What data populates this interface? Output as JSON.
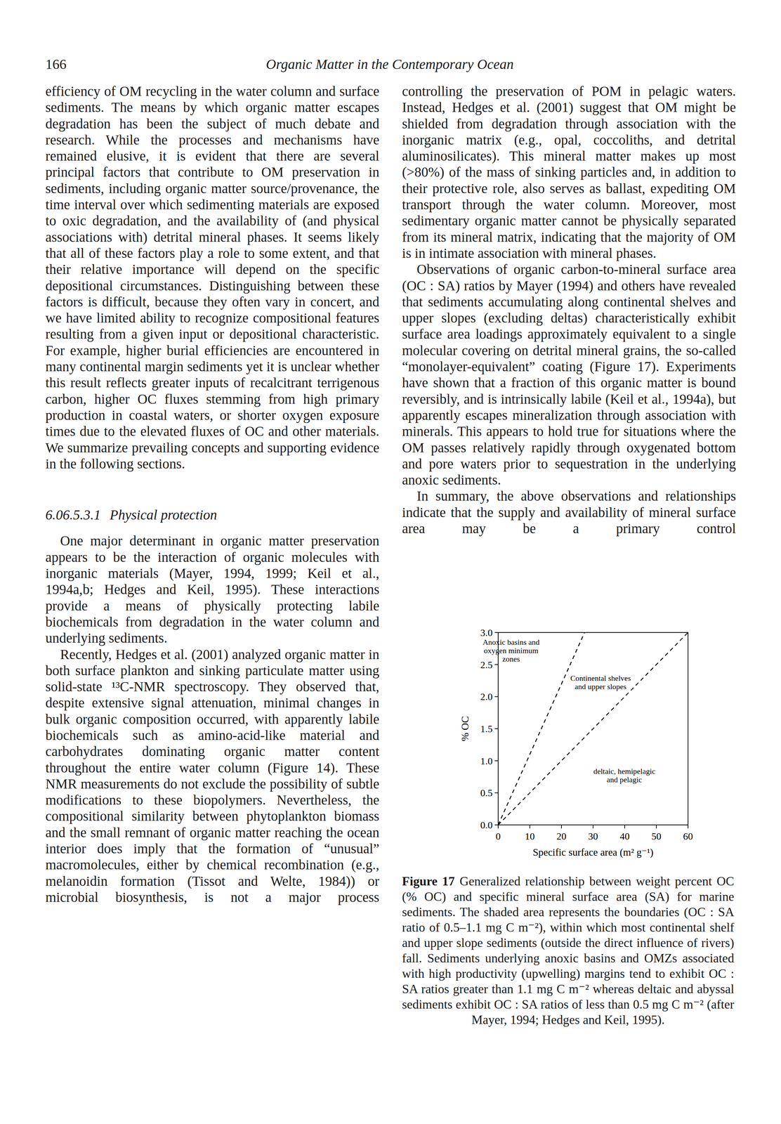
{
  "header": {
    "page_number": "166",
    "title": "Organic Matter in the Contemporary Ocean"
  },
  "left_column": [
    {
      "type": "paragraph",
      "text": "efficiency of OM recycling in the water column and surface sediments. The means by which organic matter escapes degradation has been the subject of much debate and research. While the processes and mechanisms have remained elusive, it is evident that there are several principal factors that contribute to OM preservation in sediments, including organic matter source/provenance, the time interval over which sedimenting materials are exposed to oxic degradation, and the availability of (and physical associations with) detrital mineral phases. It seems likely that all of these factors play a role to some extent, and that their relative importance will depend on the specific depositional circumstances. Distinguishing between these factors is difficult, because they often vary in concert, and we have limited ability to recognize compositional features resulting from a given input or depositional characteristic. For example, higher burial efficiencies are encountered in many continental margin sediments yet it is unclear whether this result reflects greater inputs of recalcitrant terrigenous carbon, higher OC fluxes stemming from high primary production in coastal waters, or shorter oxygen exposure times due to the elevated fluxes of OC and other materials. We summarize prevailing concepts and supporting evidence in the following sections."
    },
    {
      "type": "heading",
      "number": "6.06.5.3.1",
      "title": "Physical protection"
    },
    {
      "type": "paragraph",
      "text": "One major determinant in organic matter preservation appears to be the interaction of organic molecules with inorganic materials (Mayer, 1994, 1999; Keil et al., 1994a,b; Hedges and Keil, 1995). These interactions provide a means of physically protecting labile biochemicals from degradation in the water column and underlying sediments."
    },
    {
      "type": "paragraph",
      "text": "Recently, Hedges et al. (2001) analyzed organic matter in both surface plankton and sinking particulate matter using solid-state ¹³C-NMR spectroscopy. They observed that, despite extensive signal attenuation, minimal changes in bulk organic composition occurred, with apparently labile biochemicals such as amino-acid-like material and carbohydrates dominating organic matter content throughout the entire water column (Figure 14). These NMR measurements do not exclude the possibility of subtle modifications to these biopolymers. Nevertheless, the compositional similarity between phytoplankton biomass and the small remnant of organic matter reaching the ocean interior does imply that the formation of “unusual” macromolecules, either by chemical recombination (e.g., melanoidin formation (Tissot and Welte, 1984)) or microbial biosynthesis, is not a major process"
    }
  ],
  "right_column": [
    {
      "type": "paragraph",
      "text": "controlling the preservation of POM in pelagic waters. Instead, Hedges et al. (2001) suggest that OM might be shielded from degradation through association with the inorganic matrix (e.g., opal, coccoliths, and detrital aluminosilicates). This mineral matter makes up most (>80%) of the mass of sinking particles and, in addition to their protective role, also serves as ballast, expediting OM transport through the water column. Moreover, most sedimentary organic matter cannot be physically separated from its mineral matrix, indicating that the majority of OM is in intimate association with mineral phases."
    },
    {
      "type": "paragraph",
      "text": "Observations of organic carbon-to-mineral surface area (OC : SA) ratios by Mayer (1994) and others have revealed that sediments accumulating along continental shelves and upper slopes (excluding deltas) characteristically exhibit surface area loadings approximately equivalent to a single molecular covering on detrital mineral grains, the so-called “monolayer-equivalent” coating (Figure 17). Experiments have shown that a fraction of this organic matter is bound reversibly, and is intrinsically labile (Keil et al., 1994a), but apparently escapes mineralization through association with minerals. This appears to hold true for situations where the OM passes relatively rapidly through oxygenated bottom and pore waters prior to sequestration in the underlying anoxic sediments."
    },
    {
      "type": "paragraph",
      "text": "In summary, the above observations and relationships indicate that the supply and availability of mineral surface area may be a primary control"
    }
  ],
  "chart_data": {
    "type": "line",
    "x_label": "Specific surface area (m² g⁻¹)",
    "y_label": "% OC",
    "xlim": [
      0,
      60
    ],
    "ylim": [
      0,
      3
    ],
    "xticks": [
      0,
      10,
      20,
      30,
      40,
      50,
      60
    ],
    "yticks": [
      {
        "value": 0,
        "label": "0.0"
      },
      0.5,
      {
        "value": 1,
        "label": "1.0"
      },
      1.5,
      {
        "value": 2,
        "label": "2.0"
      },
      2.5,
      {
        "value": 3,
        "label": "3.0"
      }
    ],
    "grid": false,
    "series": [
      {
        "x": [
          0,
          27.3
        ],
        "values": [
          0,
          3
        ],
        "line_style": "dashed",
        "color": "#000000"
      },
      {
        "x": [
          0,
          60
        ],
        "values": [
          0,
          3
        ],
        "line_style": "dashed",
        "color": "#000000"
      }
    ],
    "annotations": [
      {
        "lines": [
          "Anoxic basins and",
          "oxygen minimum",
          "zones"
        ]
      },
      {
        "lines": [
          "Continental shelves",
          "and upper slopes"
        ]
      },
      {
        "lines": [
          "deltaic, hemipelagic",
          "and pelagic"
        ]
      }
    ]
  },
  "caption": {
    "label": "Figure 17",
    "text": "Generalized relationship between weight percent OC (% OC) and specific mineral surface area (SA) for marine sediments. The shaded area represents the boundaries (OC : SA ratio of 0.5–1.1 mg C m⁻²), within which most continental shelf and upper slope sediments (outside the direct influence of rivers) fall. Sediments underlying anoxic basins and OMZs associated with high productivity (upwelling) margins tend to exhibit OC : SA ratios greater than 1.1 mg C m⁻² whereas deltaic and abyssal sediments exhibit OC : SA ratios of less than 0.5 mg C m⁻² (after Mayer, 1994; Hedges and Keil, 1995)."
  }
}
